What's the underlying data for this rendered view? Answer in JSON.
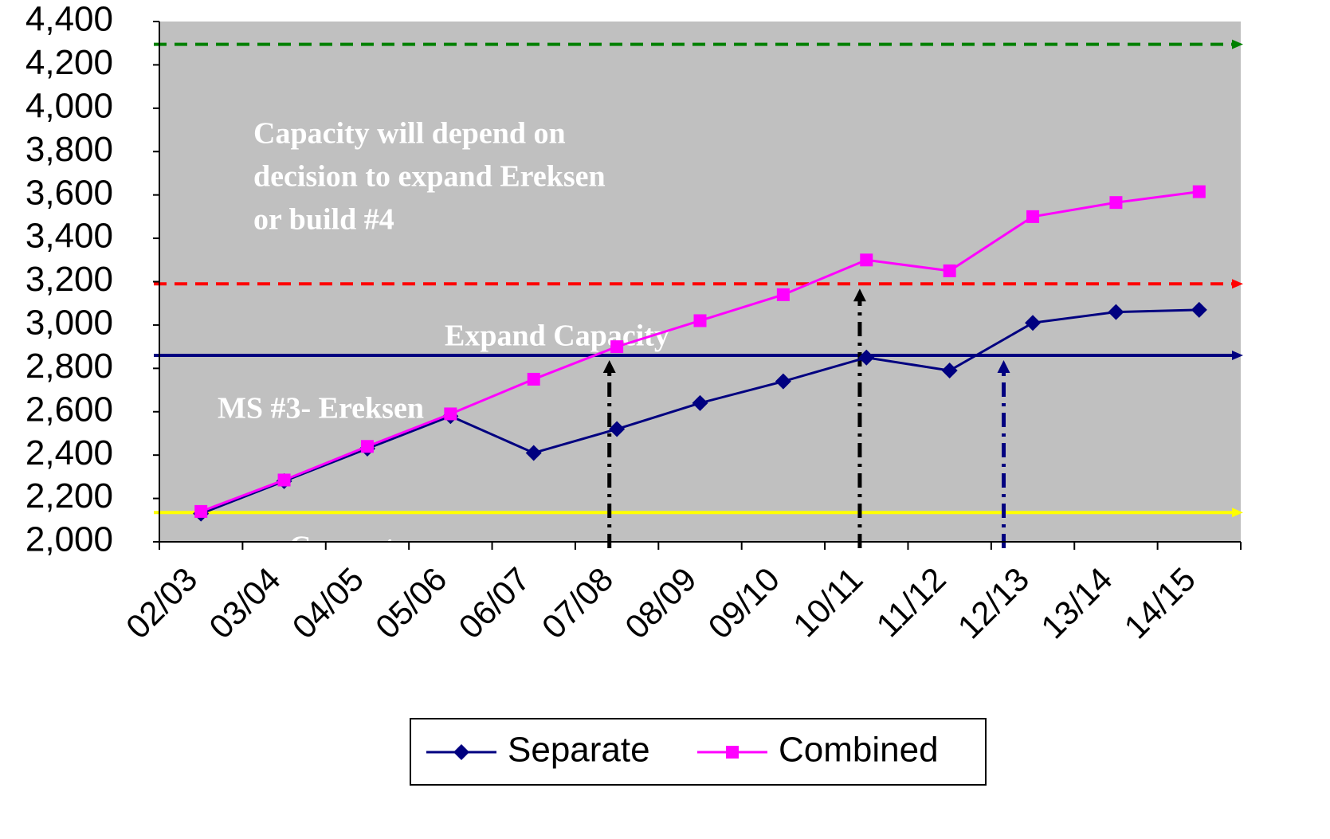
{
  "chart_data": {
    "type": "line",
    "categories": [
      "02/03",
      "03/04",
      "04/05",
      "05/06",
      "06/07",
      "07/08",
      "08/09",
      "09/10",
      "10/11",
      "11/12",
      "12/13",
      "13/14",
      "14/15"
    ],
    "series": [
      {
        "name": "Separate",
        "color": "#000080",
        "marker": "diamond",
        "values": [
          2130,
          2280,
          2430,
          2580,
          2410,
          2520,
          2640,
          2740,
          2850,
          2790,
          3010,
          3060,
          3070
        ]
      },
      {
        "name": "Combined",
        "color": "#ff00ff",
        "marker": "square",
        "values": [
          2140,
          2285,
          2440,
          2590,
          2750,
          2900,
          3020,
          3140,
          3300,
          3250,
          3500,
          3565,
          3615
        ]
      }
    ],
    "ylim": [
      2000,
      4400
    ],
    "yticks": [
      {
        "value": 2000,
        "label": "2,000"
      },
      {
        "value": 2200,
        "label": "2,200"
      },
      {
        "value": 2400,
        "label": "2,400"
      },
      {
        "value": 2600,
        "label": "2,600"
      },
      {
        "value": 2800,
        "label": "2,800"
      },
      {
        "value": 3000,
        "label": "3,000"
      },
      {
        "value": 3200,
        "label": "3,200"
      },
      {
        "value": 3400,
        "label": "3,400"
      },
      {
        "value": 3600,
        "label": "3,600"
      },
      {
        "value": 3800,
        "label": "3,800"
      },
      {
        "value": 4000,
        "label": "4,000"
      },
      {
        "value": 4200,
        "label": "4,200"
      },
      {
        "value": 4400,
        "label": "4,400"
      }
    ],
    "grid": false,
    "background": "#c0c0c0",
    "reference_lines": [
      {
        "value": 4295,
        "color": "#008000",
        "dashed": true
      },
      {
        "value": 3190,
        "color": "#ff0000",
        "dashed": true
      },
      {
        "value": 2860,
        "color": "#000080",
        "dashed": false
      },
      {
        "value": 2135,
        "color": "#ffff00",
        "dashed": false
      }
    ],
    "arrows": [
      {
        "x": 5.41,
        "to": 2860,
        "color": "#000000"
      },
      {
        "x": 8.42,
        "to": 3190,
        "color": "#000000"
      },
      {
        "x": 10.15,
        "to": 2860,
        "color": "#000080"
      }
    ],
    "annotations": {
      "capacity_note": [
        "Capacity will depend on",
        "decision to expand Ereksen",
        "or build #4"
      ],
      "expand": "Expand Capacity",
      "ms3": "MS #3- Ereksen",
      "current": "Current"
    },
    "legend": "bottom"
  }
}
